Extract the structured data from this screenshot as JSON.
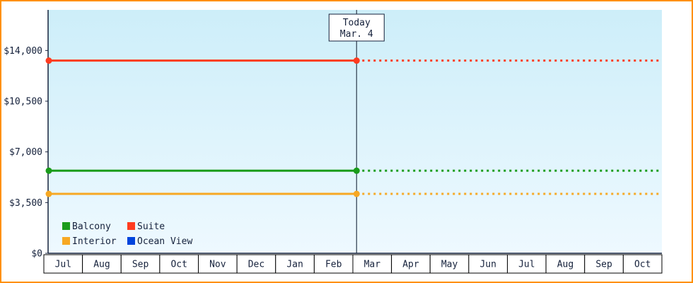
{
  "chart_data": {
    "type": "line",
    "title": "",
    "categories": [
      "Jul",
      "Aug",
      "Sep",
      "Oct",
      "Nov",
      "Dec",
      "Jan",
      "Feb",
      "Mar",
      "Apr",
      "May",
      "Jun",
      "Jul",
      "Aug",
      "Sep",
      "Oct"
    ],
    "y_ticks": [
      {
        "label": "$14,000",
        "value": 14000
      },
      {
        "label": "$10,500",
        "value": 10500
      },
      {
        "label": "$7,000",
        "value": 7000
      },
      {
        "label": "$3,500",
        "value": 3500
      },
      {
        "label": "$0",
        "value": 0
      }
    ],
    "ylim": [
      0,
      16800
    ],
    "series": [
      {
        "name": "Balcony",
        "color": "#1a9c1a",
        "value": 5700,
        "shown": true
      },
      {
        "name": "Suite",
        "color": "#ff3b1f",
        "value": 13300,
        "shown": true
      },
      {
        "name": "Interior",
        "color": "#f7a823",
        "value": 4100,
        "shown": true
      },
      {
        "name": "Ocean View",
        "color": "#0044dd",
        "value": null,
        "shown": false
      }
    ],
    "today_marker": {
      "line1": "Today",
      "line2": "Mar. 4",
      "month_index": 8,
      "day": 4,
      "days_in_month": 31
    },
    "legend": [
      "Balcony",
      "Suite",
      "Interior",
      "Ocean View"
    ],
    "style": {
      "frame_border": "#ff9000",
      "plot_bg_top": "#cdeef9",
      "plot_bg_bottom": "#eef9ff",
      "axis": "#16223c",
      "today_line": "#3a4a5a",
      "month_box_bg": "#ffffff",
      "month_box_border": "#000000",
      "today_box_bg": "#ffffff",
      "today_box_border": "#16223c",
      "grid": "off",
      "legend_position": "bottom-left-inside"
    }
  }
}
